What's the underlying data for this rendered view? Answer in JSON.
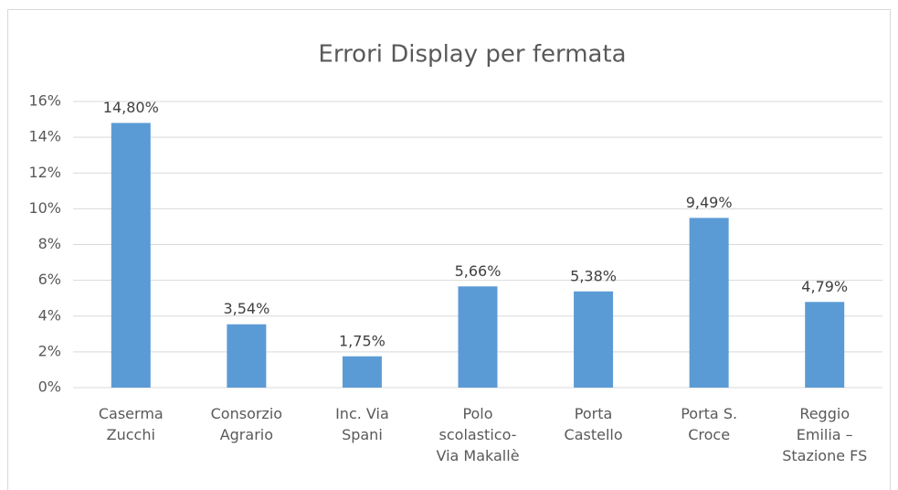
{
  "chart_data": {
    "type": "bar",
    "title": "Errori Display per fermata",
    "categories": [
      "Caserma\nZucchi",
      "Consorzio\nAgrario",
      "Inc. Via\nSpani",
      "Polo\nscolastico-\nVia Makallè",
      "Porta\nCastello",
      "Porta S.\nCroce",
      "Reggio\nEmilia –\nStazione FS"
    ],
    "values": [
      14.8,
      3.54,
      1.75,
      5.66,
      5.38,
      9.49,
      4.79
    ],
    "value_labels": [
      "14,80%",
      "3,54%",
      "1,75%",
      "5,66%",
      "5,38%",
      "9,49%",
      "4,79%"
    ],
    "color": "#5b9bd5",
    "ylim": [
      0,
      16
    ],
    "yticks": [
      {
        "value": 0,
        "label": "0%"
      },
      {
        "value": 2,
        "label": "2%"
      },
      {
        "value": 4,
        "label": "4%"
      },
      {
        "value": 6,
        "label": "6%"
      },
      {
        "value": 8,
        "label": "8%"
      },
      {
        "value": 10,
        "label": "10%"
      },
      {
        "value": 12,
        "label": "12%"
      },
      {
        "value": 14,
        "label": "14%"
      },
      {
        "value": 16,
        "label": "16%"
      }
    ],
    "grid": true
  }
}
